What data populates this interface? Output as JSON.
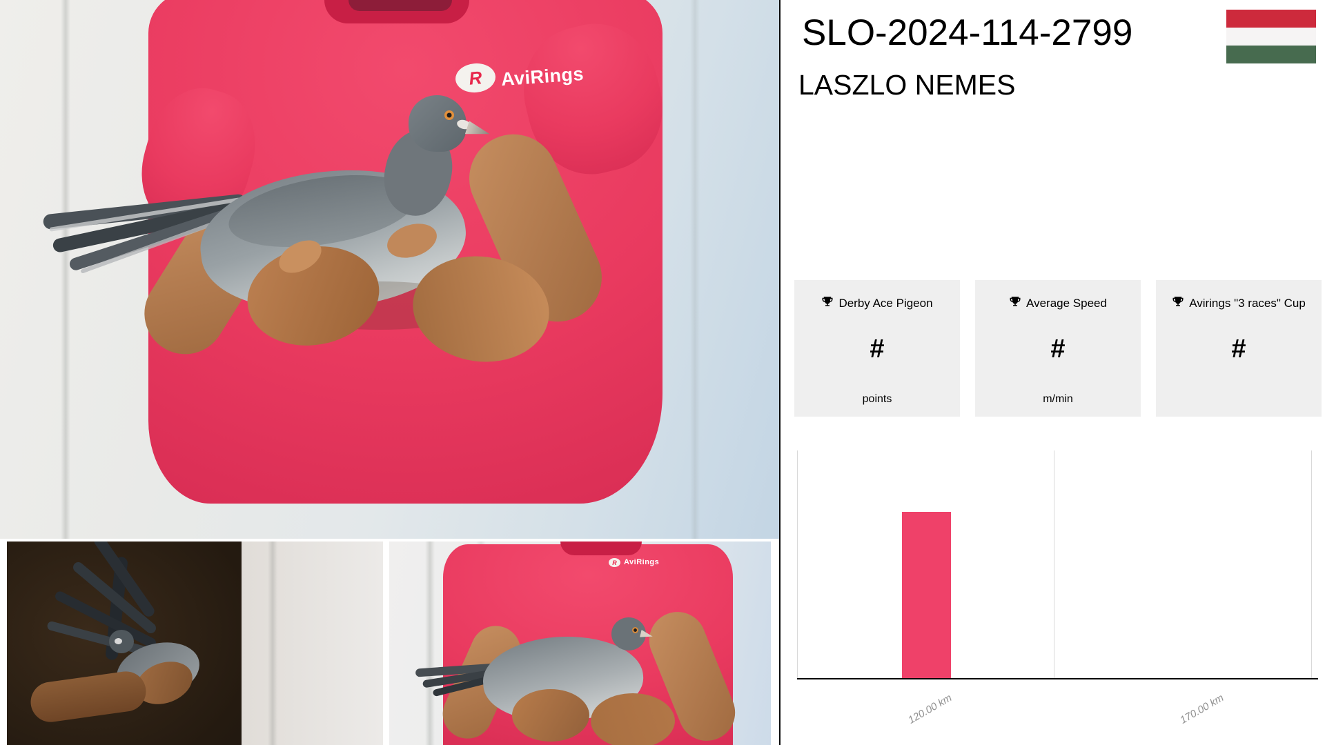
{
  "header": {
    "ring_number": "SLO-2024-114-2799",
    "owner_name": "LASZLO NEMES",
    "flag_country": "hungary",
    "flag_colors": {
      "top": "#cd2a3c",
      "middle": "#f6f4f4",
      "bottom": "#476b4f"
    }
  },
  "brand": {
    "logo_text": "AviRings",
    "logo_mark": "R",
    "logo_accent": "#e8274b"
  },
  "stats": [
    {
      "icon": "trophy-icon",
      "label": "Derby Ace Pigeon",
      "value": "#",
      "unit": "points"
    },
    {
      "icon": "trophy-icon",
      "label": "Average Speed",
      "value": "#",
      "unit": "m/min"
    },
    {
      "icon": "trophy-icon",
      "label": "Avirings \"3 races\" Cup",
      "value": "#",
      "unit": ""
    }
  ],
  "chart_data": {
    "type": "bar",
    "categories": [
      "120.00 km",
      "170.00 km"
    ],
    "values": [
      0.73,
      0
    ],
    "note": "no y-axis ticks or value labels are shown; values are fractions of plot height",
    "title": "",
    "xlabel": "",
    "ylabel": "",
    "bar_color": "#ef4169",
    "grid": "vertical category separators only, light gray",
    "baseline_color": "#000000",
    "x_label_rotation_deg": -30,
    "x_label_style": "italic, gray",
    "legend": "none"
  }
}
